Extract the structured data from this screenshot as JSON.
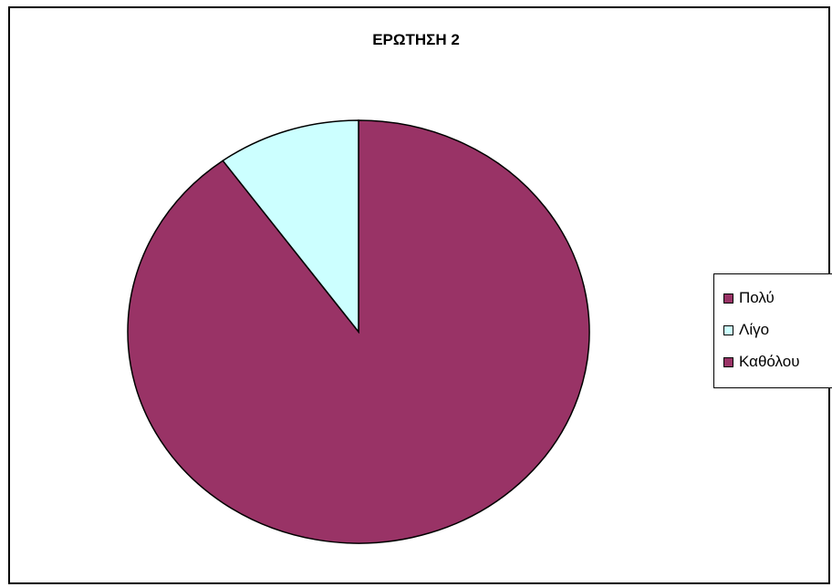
{
  "chart_data": {
    "type": "pie",
    "title": "ΕΡΩΤΗΣΗ 2",
    "labels": [
      "Πολύ",
      "Λίγο",
      "Καθόλου"
    ],
    "values": [
      90,
      10,
      0
    ],
    "colors": [
      "#993366",
      "#CCFFFF",
      "#993366"
    ],
    "legend_position": "right",
    "start_angle_deg": 0,
    "direction": "clockwise"
  }
}
